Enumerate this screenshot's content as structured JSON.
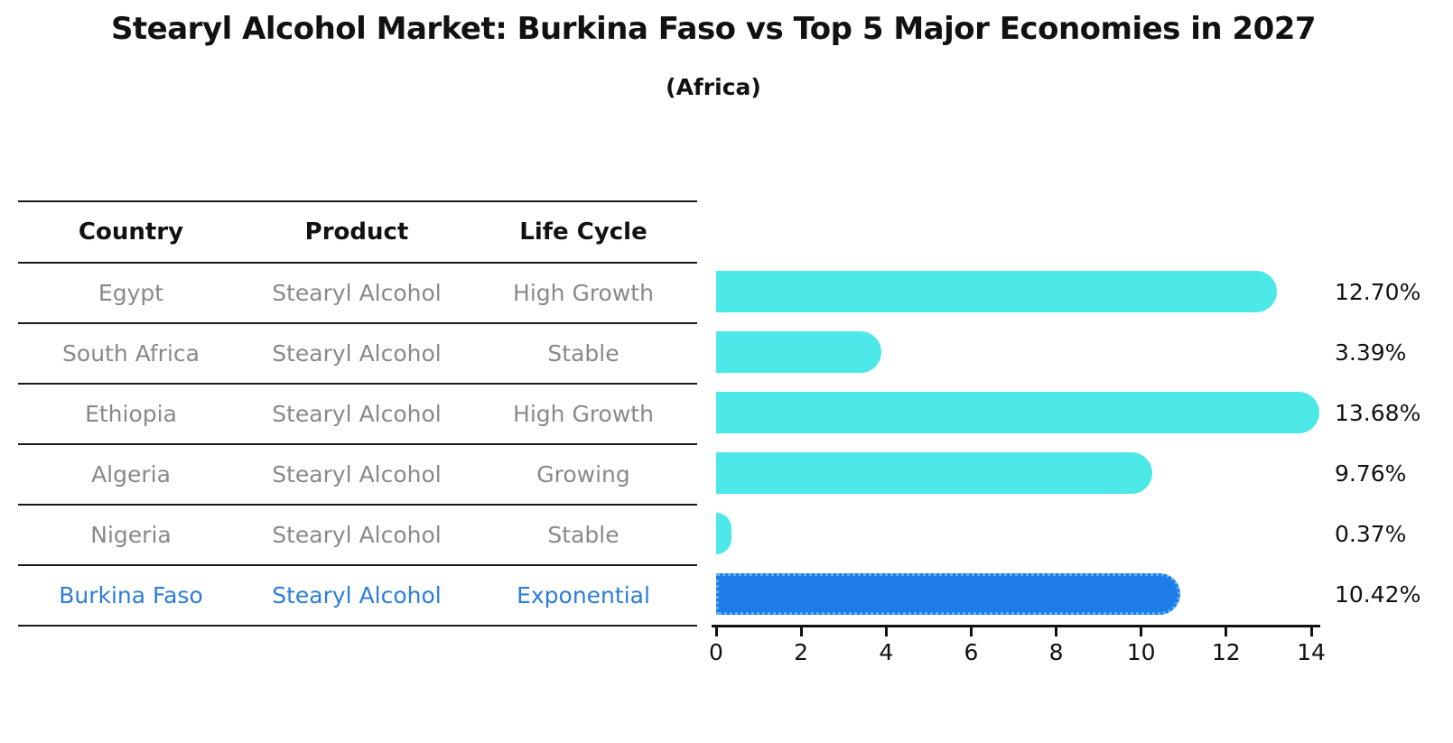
{
  "page": {
    "title": "Stearyl Alcohol Market: Burkina Faso vs Top 5 Major Economies in 2027",
    "subtitle": "(Africa)"
  },
  "table": {
    "headers": [
      "Country",
      "Product",
      "Life Cycle"
    ],
    "rows": [
      {
        "country": "Egypt",
        "product": "Stearyl Alcohol",
        "life_cycle": "High Growth",
        "highlight": false
      },
      {
        "country": "South Africa",
        "product": "Stearyl Alcohol",
        "life_cycle": "Stable",
        "highlight": false
      },
      {
        "country": "Ethiopia",
        "product": "Stearyl Alcohol",
        "life_cycle": "High Growth",
        "highlight": false
      },
      {
        "country": "Algeria",
        "product": "Stearyl Alcohol",
        "life_cycle": "Growing",
        "highlight": false
      },
      {
        "country": "Nigeria",
        "product": "Stearyl Alcohol",
        "life_cycle": "Stable",
        "highlight": false
      },
      {
        "country": "Burkina Faso",
        "product": "Stearyl Alcohol",
        "life_cycle": "Exponential",
        "highlight": true
      }
    ]
  },
  "chart_data": {
    "type": "bar",
    "orientation": "horizontal",
    "title": "Stearyl Alcohol Market: Burkina Faso vs Top 5 Major Economies in 2027",
    "subtitle": "(Africa)",
    "categories": [
      "Egypt",
      "South Africa",
      "Ethiopia",
      "Algeria",
      "Nigeria",
      "Burkina Faso"
    ],
    "values": [
      12.7,
      3.39,
      13.68,
      9.76,
      0.37,
      10.42
    ],
    "value_labels": [
      "12.70%",
      "3.39%",
      "13.68%",
      "9.76%",
      "0.37%",
      "10.42%"
    ],
    "highlight_index": 5,
    "xlim": [
      0,
      14.5
    ],
    "xticks": [
      0,
      2,
      4,
      6,
      8,
      10,
      12,
      14
    ],
    "grid": false,
    "legend": null,
    "colors": {
      "bar": "#4de8e8",
      "highlight_bar": "#1e7ce8",
      "highlight_edge": "#5bb0f0",
      "row_text": "#898989",
      "highlight_text": "#2b7dd8",
      "axis_text": "#111111"
    }
  }
}
